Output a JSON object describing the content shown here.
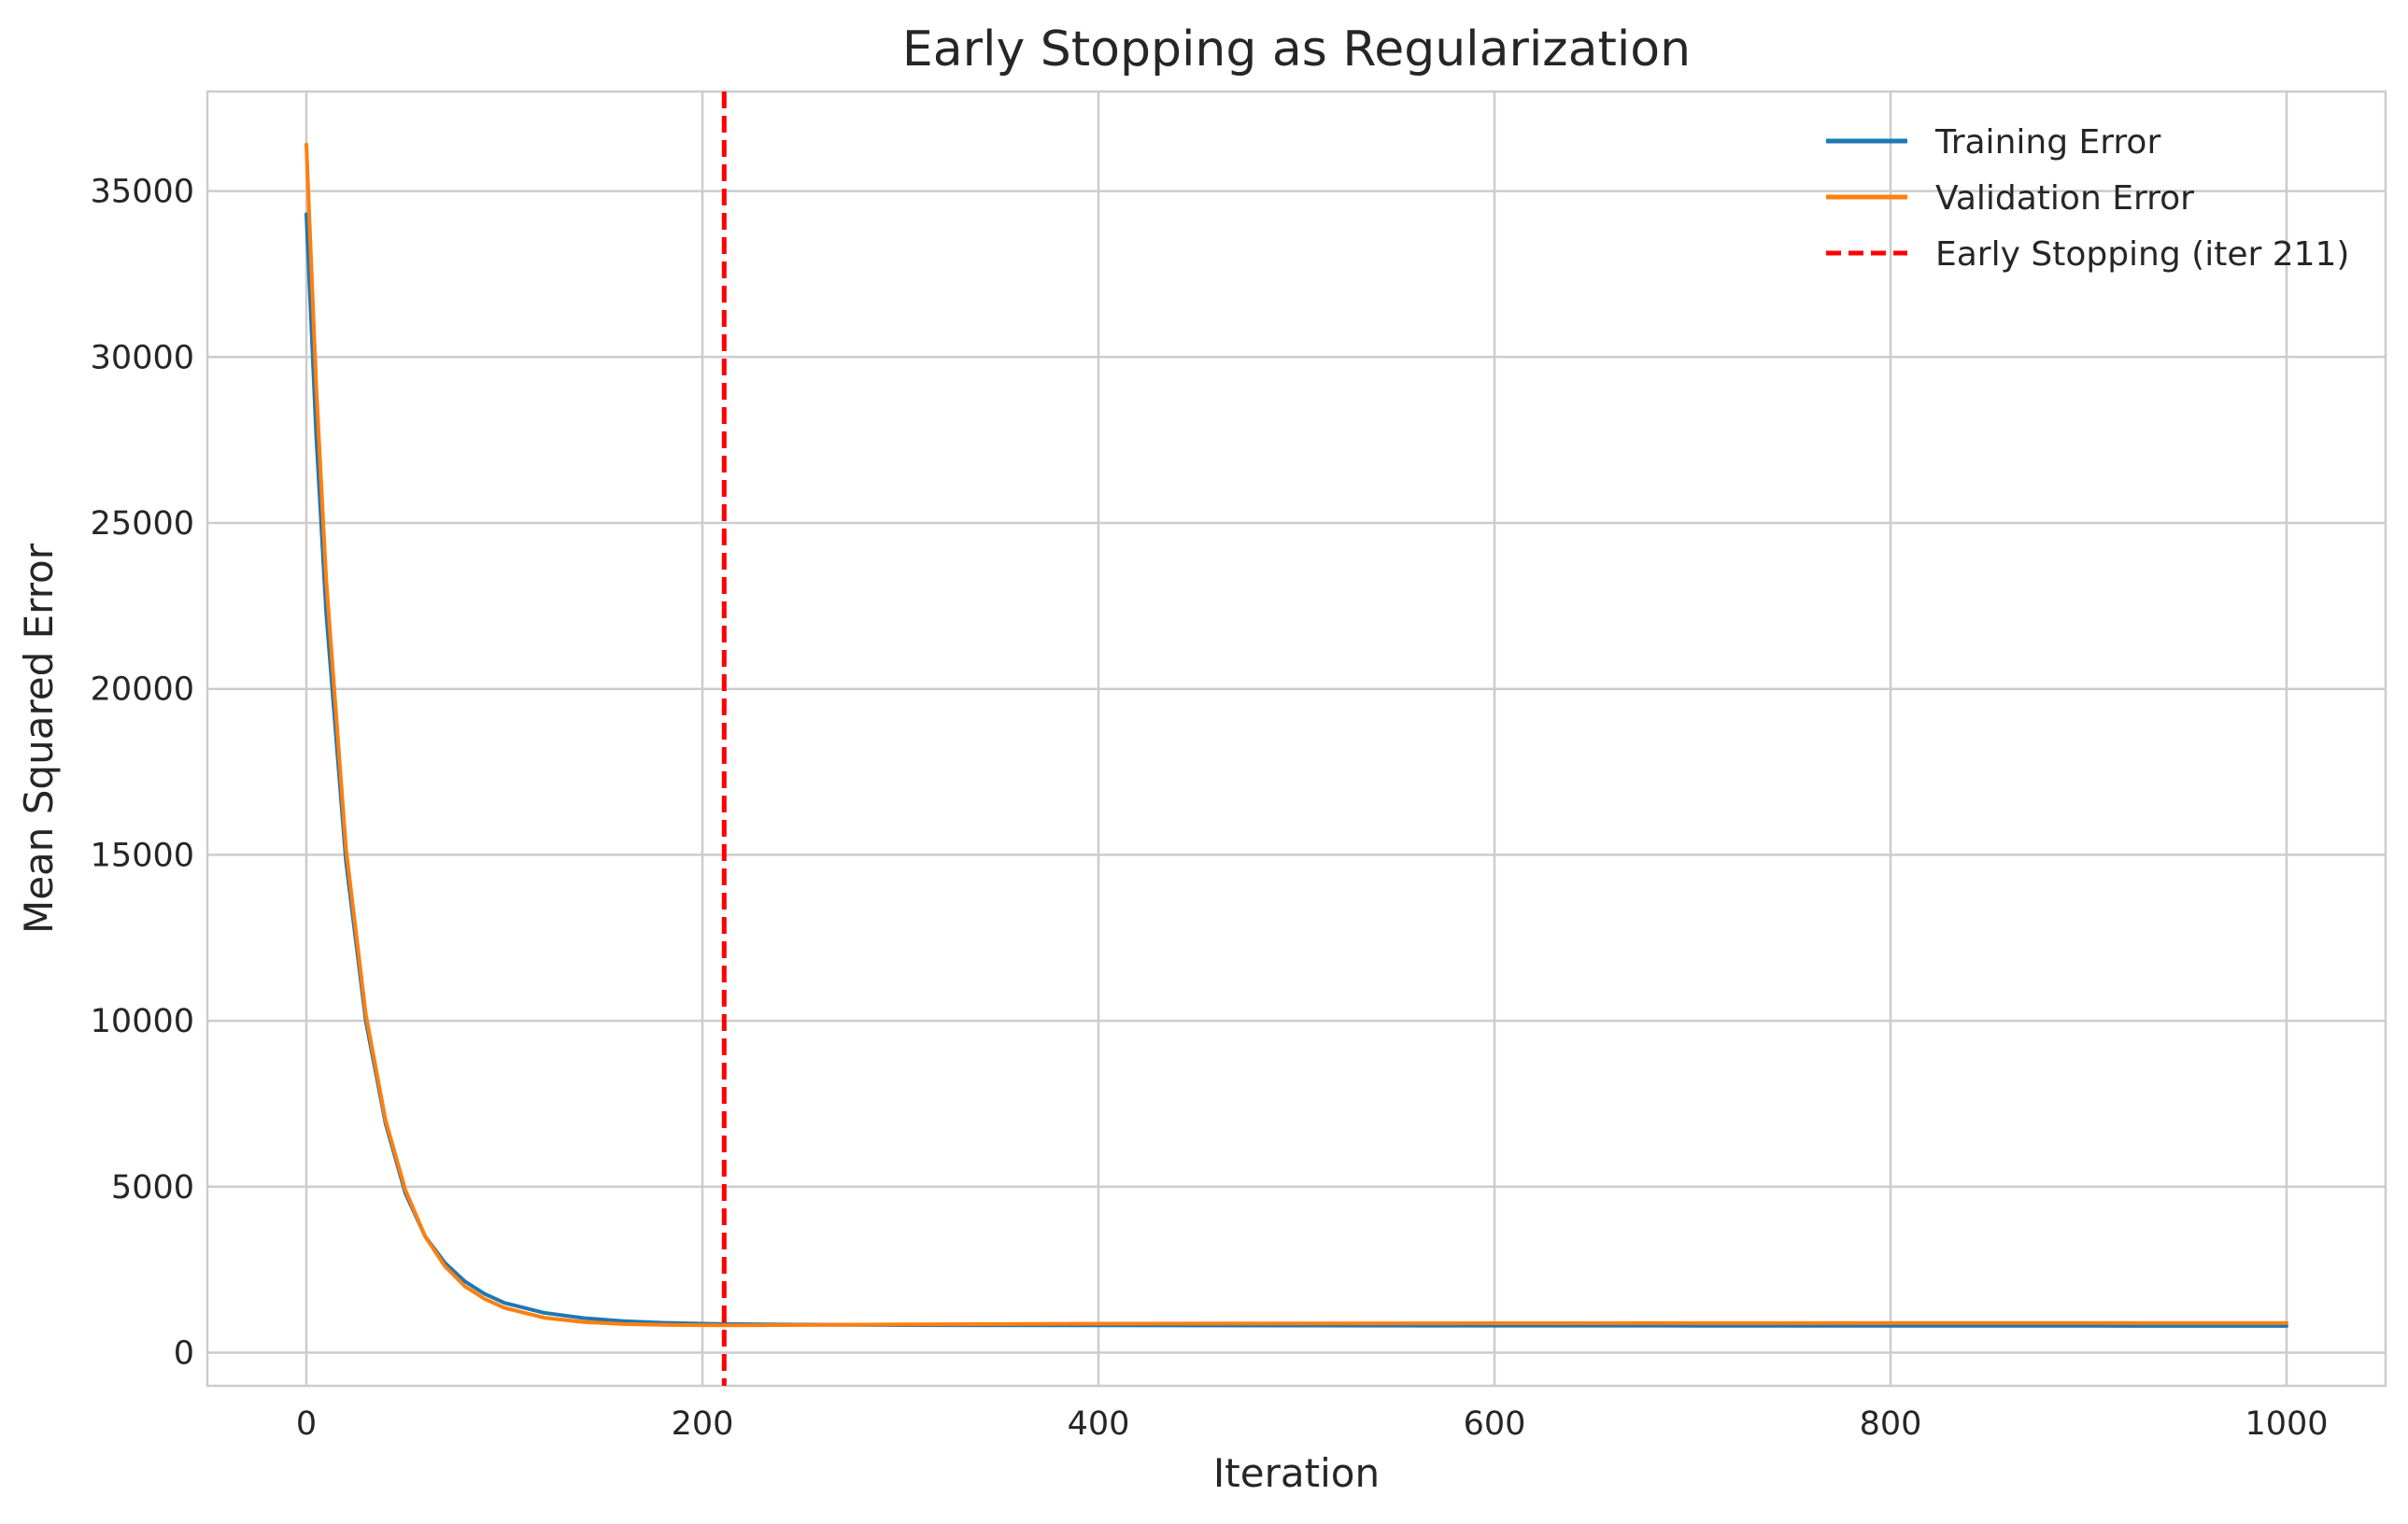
{
  "chart_data": {
    "type": "line",
    "title": "Early Stopping as Regularization",
    "xlabel": "Iteration",
    "ylabel": "Mean Squared Error",
    "xlim": [
      -50,
      1050
    ],
    "ylim": [
      -1000,
      38000
    ],
    "xticks": [
      0,
      200,
      400,
      600,
      800,
      1000
    ],
    "yticks": [
      0,
      5000,
      10000,
      15000,
      20000,
      25000,
      30000,
      35000
    ],
    "grid": true,
    "legend_position": "top-right",
    "series": [
      {
        "name": "Training Error",
        "color": "#1f77b4",
        "x": [
          0,
          5,
          10,
          20,
          30,
          40,
          50,
          60,
          70,
          80,
          90,
          100,
          120,
          140,
          160,
          180,
          200,
          211,
          240,
          300,
          400,
          500,
          600,
          700,
          800,
          900,
          1000
        ],
        "y": [
          34300,
          27600,
          22300,
          14800,
          10000,
          6900,
          4800,
          3500,
          2700,
          2150,
          1770,
          1500,
          1200,
          1040,
          950,
          900,
          870,
          860,
          845,
          830,
          820,
          815,
          812,
          810,
          808,
          806,
          805
        ]
      },
      {
        "name": "Validation Error",
        "color": "#ff7f0e",
        "x": [
          0,
          5,
          10,
          20,
          30,
          40,
          50,
          60,
          70,
          80,
          90,
          100,
          120,
          140,
          160,
          180,
          200,
          211,
          240,
          300,
          400,
          500,
          600,
          700,
          800,
          900,
          1000
        ],
        "y": [
          36400,
          29100,
          23300,
          15200,
          10200,
          7000,
          4900,
          3500,
          2600,
          2000,
          1620,
          1350,
          1050,
          920,
          860,
          835,
          825,
          822,
          830,
          850,
          870,
          880,
          885,
          888,
          890,
          891,
          892
        ]
      }
    ],
    "vline": {
      "name": "Early Stopping (iter 211)",
      "x": 211,
      "color": "#ff0000",
      "style": "dashed"
    }
  }
}
